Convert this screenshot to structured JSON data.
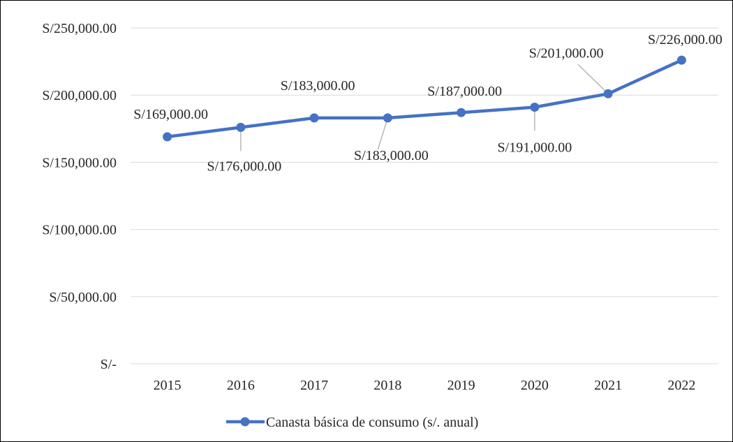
{
  "chart_data": {
    "type": "line",
    "title": "",
    "xlabel": "",
    "ylabel": "",
    "categories": [
      "2015",
      "2016",
      "2017",
      "2018",
      "2019",
      "2020",
      "2021",
      "2022"
    ],
    "series": [
      {
        "name": "Canasta básica de consumo (s/. anual)",
        "values": [
          169000,
          176000,
          183000,
          183000,
          187000,
          191000,
          201000,
          226000
        ],
        "color": "#4472C4",
        "marker": "circle"
      }
    ],
    "data_labels": [
      "S/169,000.00",
      "S/176,000.00",
      "S/183,000.00",
      "S/183,000.00",
      "S/187,000.00",
      "S/191,000.00",
      "S/201,000.00",
      "S/226,000.00"
    ],
    "y_ticks": [
      0,
      50000,
      100000,
      150000,
      200000,
      250000
    ],
    "y_tick_labels": [
      "S/-",
      "S/50,000.00",
      "S/100,000.00",
      "S/150,000.00",
      "S/200,000.00",
      "S/250,000.00"
    ],
    "ylim": [
      0,
      250000
    ],
    "grid": "horizontal",
    "gridline_color": "#D9D9D9",
    "legend_position": "bottom"
  }
}
